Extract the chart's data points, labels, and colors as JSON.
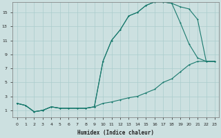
{
  "xlabel": "Humidex (Indice chaleur)",
  "xlim": [
    -0.5,
    23.5
  ],
  "ylim": [
    0,
    16.5
  ],
  "xticks": [
    0,
    1,
    2,
    3,
    4,
    5,
    6,
    7,
    8,
    9,
    10,
    11,
    12,
    13,
    14,
    15,
    16,
    17,
    18,
    19,
    20,
    21,
    22,
    23
  ],
  "yticks": [
    1,
    3,
    5,
    7,
    9,
    11,
    13,
    15
  ],
  "bg_color": "#cce0e0",
  "grid_color": "#aacccc",
  "line_color": "#1a7a6e",
  "curve1_x": [
    0,
    1,
    2,
    3,
    4,
    5,
    6,
    7,
    8,
    9,
    10,
    11,
    12,
    13,
    14,
    15,
    16,
    17,
    18,
    19,
    20,
    21,
    22,
    23
  ],
  "curve1_y": [
    2.0,
    1.7,
    0.8,
    1.0,
    1.5,
    1.3,
    1.3,
    1.3,
    1.3,
    1.5,
    8.0,
    11.0,
    12.5,
    14.5,
    15.0,
    16.0,
    16.5,
    16.5,
    16.3,
    15.8,
    15.5,
    14.0,
    8.0,
    8.0
  ],
  "curve2_x": [
    0,
    1,
    2,
    3,
    4,
    5,
    6,
    7,
    8,
    9,
    10,
    11,
    12,
    13,
    14,
    15,
    16,
    17,
    18,
    19,
    20,
    21,
    22,
    23
  ],
  "curve2_y": [
    2.0,
    1.7,
    0.8,
    1.0,
    1.5,
    1.3,
    1.3,
    1.3,
    1.3,
    1.5,
    2.0,
    2.2,
    2.5,
    2.8,
    3.0,
    3.5,
    4.0,
    5.0,
    5.5,
    6.5,
    7.5,
    8.0,
    8.0,
    8.0
  ],
  "curve3_x": [
    0,
    1,
    2,
    3,
    4,
    5,
    6,
    7,
    8,
    9,
    10,
    11,
    12,
    13,
    14,
    15,
    16,
    17,
    18,
    19,
    20,
    21,
    22,
    23
  ],
  "curve3_y": [
    2.0,
    1.7,
    0.8,
    1.0,
    1.5,
    1.3,
    1.3,
    1.3,
    1.3,
    1.5,
    8.0,
    11.0,
    12.5,
    14.5,
    15.0,
    16.0,
    16.5,
    16.5,
    16.3,
    13.5,
    10.5,
    8.5,
    8.0,
    8.0
  ]
}
